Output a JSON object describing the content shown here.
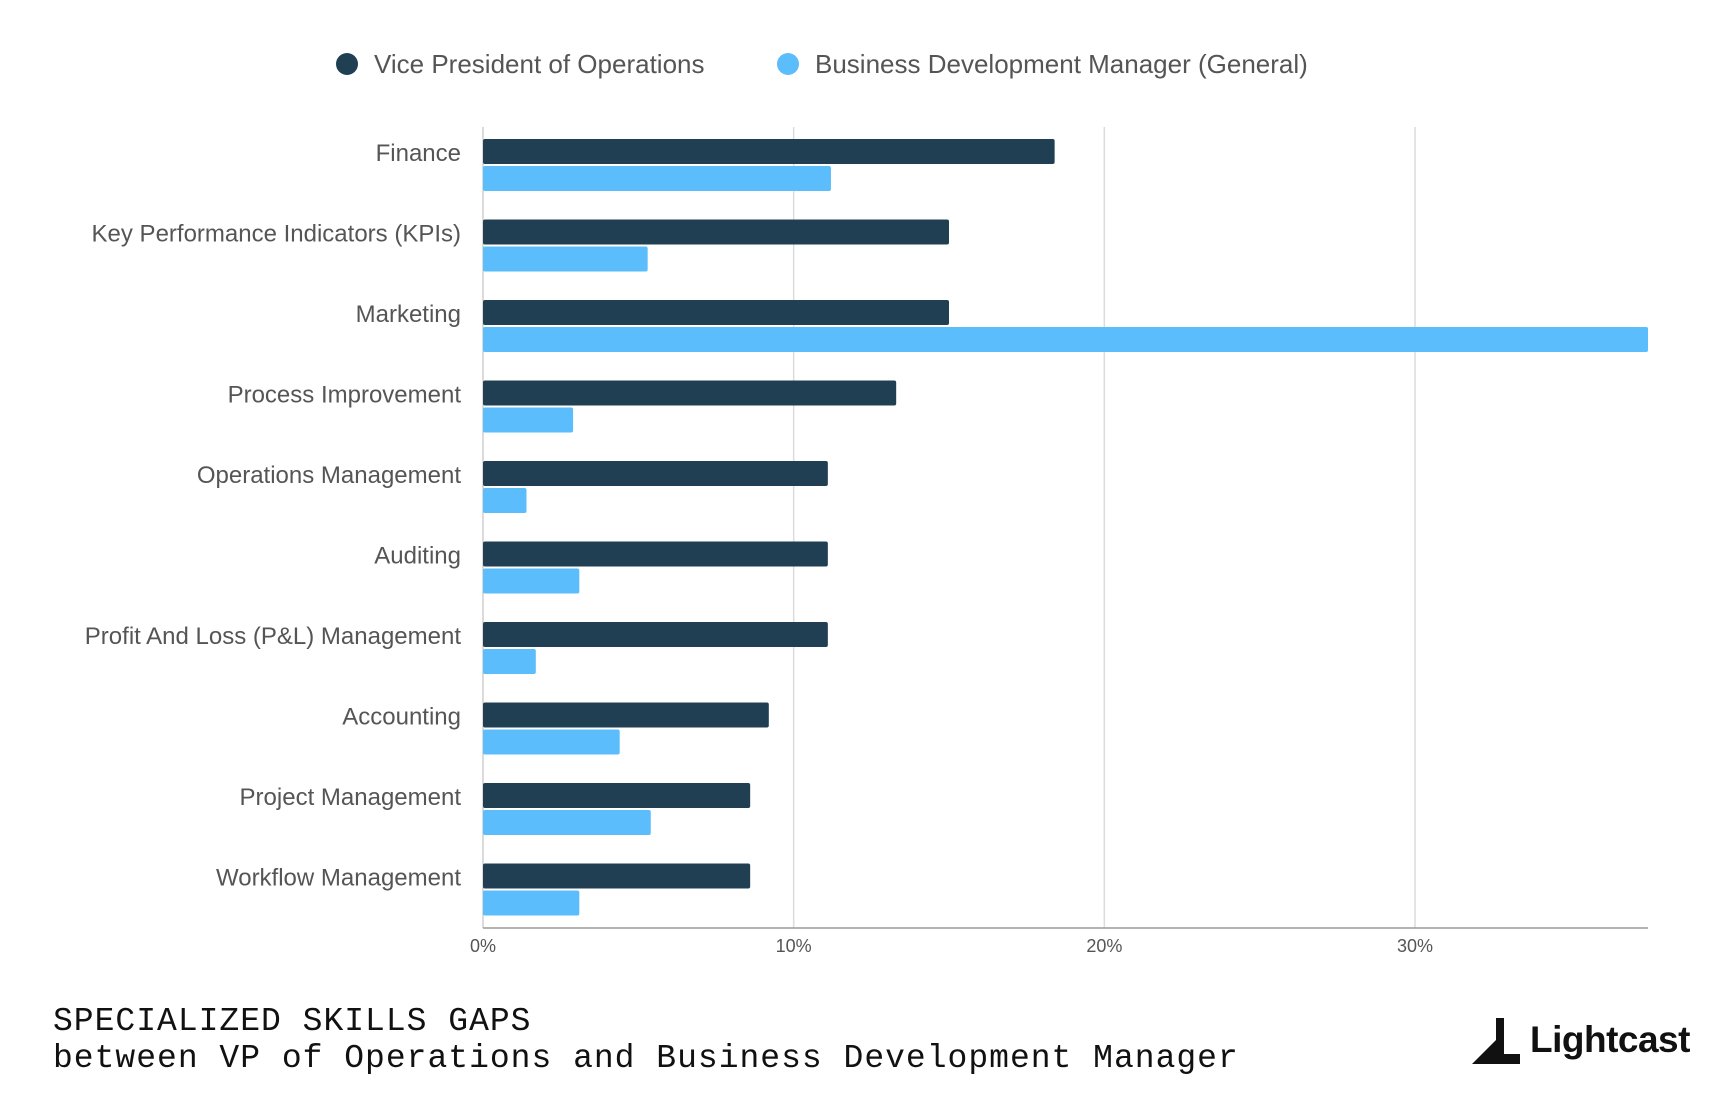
{
  "chart_data": {
    "type": "bar",
    "orientation": "horizontal",
    "categories": [
      "Finance",
      "Key Performance Indicators (KPIs)",
      "Marketing",
      "Process Improvement",
      "Operations Management",
      "Auditing",
      "Profit And Loss (P&L) Management",
      "Accounting",
      "Project Management",
      "Workflow Management"
    ],
    "series": [
      {
        "name": "Vice President of Operations",
        "color": "#213f52",
        "values": [
          18.4,
          15.0,
          15.0,
          13.3,
          11.1,
          11.1,
          11.1,
          9.2,
          8.6,
          8.6
        ]
      },
      {
        "name": "Business Development Manager (General)",
        "color": "#5bbdfb",
        "values": [
          11.2,
          5.3,
          37.5,
          2.9,
          1.4,
          3.1,
          1.7,
          4.4,
          5.4,
          3.1
        ]
      }
    ],
    "x_ticks": [
      "0%",
      "10%",
      "20%",
      "30%"
    ],
    "xlim": [
      0,
      37.5
    ],
    "grid": true,
    "legend_position": "top"
  },
  "footer": {
    "title": "SPECIALIZED SKILLS GAPS",
    "subtitle": "between VP of Operations and Business Development Manager"
  },
  "brand": {
    "name": "Lightcast"
  }
}
